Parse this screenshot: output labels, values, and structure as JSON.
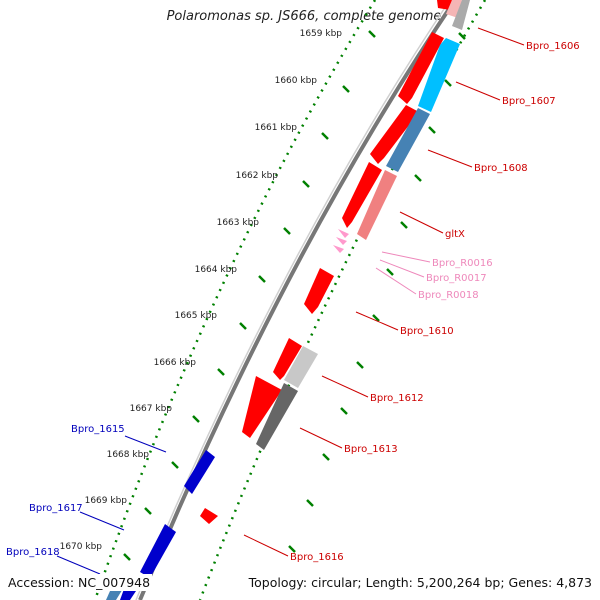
{
  "title": "Polaromonas sp. JS666, complete genome",
  "footer": {
    "accession": "Accession: NC_007948",
    "summary": "Topology: circular; Length: 5,200,264 bp; Genes: 4,873"
  },
  "colors": {
    "forward_red": "#ff0000",
    "reverse_red": "#ff1a1a",
    "light_red": "#f08080",
    "pink_rna": "#ff99cc",
    "pink_label": "#ee88bb",
    "blue": "#0000cc",
    "blue_label": "#0000bb",
    "cyan": "#00bfff",
    "steel": "#4682b4",
    "grey": "#aaaaaa",
    "dark_grey": "#666666",
    "green_tick": "#008000"
  },
  "ticks": [
    {
      "kbp": 1659,
      "label": "1659 kbp"
    },
    {
      "kbp": 1660,
      "label": "1660 kbp"
    },
    {
      "kbp": 1661,
      "label": "1661 kbp"
    },
    {
      "kbp": 1662,
      "label": "1662 kbp"
    },
    {
      "kbp": 1663,
      "label": "1663 kbp"
    },
    {
      "kbp": 1664,
      "label": "1664 kbp"
    },
    {
      "kbp": 1665,
      "label": "1665 kbp"
    },
    {
      "kbp": 1666,
      "label": "1666 kbp"
    },
    {
      "kbp": 1667,
      "label": "1667 kbp"
    },
    {
      "kbp": 1668,
      "label": "1668 kbp"
    },
    {
      "kbp": 1669,
      "label": "1669 kbp"
    },
    {
      "kbp": 1670,
      "label": "1670 kbp"
    }
  ],
  "labels": [
    {
      "text": "Bpro_1606",
      "color": "#cc0000"
    },
    {
      "text": "Bpro_1607",
      "color": "#cc0000"
    },
    {
      "text": "Bpro_1608",
      "color": "#cc0000"
    },
    {
      "text": "gltX",
      "color": "#cc0000"
    },
    {
      "text": "Bpro_R0016",
      "color": "#ee88bb"
    },
    {
      "text": "Bpro_R0017",
      "color": "#ee88bb"
    },
    {
      "text": "Bpro_R0018",
      "color": "#ee88bb"
    },
    {
      "text": "Bpro_1610",
      "color": "#cc0000"
    },
    {
      "text": "Bpro_1612",
      "color": "#cc0000"
    },
    {
      "text": "Bpro_1613",
      "color": "#cc0000"
    },
    {
      "text": "Bpro_1616",
      "color": "#cc0000"
    },
    {
      "text": "Bpro_1615",
      "color": "#0000bb"
    },
    {
      "text": "Bpro_1617",
      "color": "#0000bb"
    },
    {
      "text": "Bpro_1618",
      "color": "#0000bb"
    }
  ]
}
